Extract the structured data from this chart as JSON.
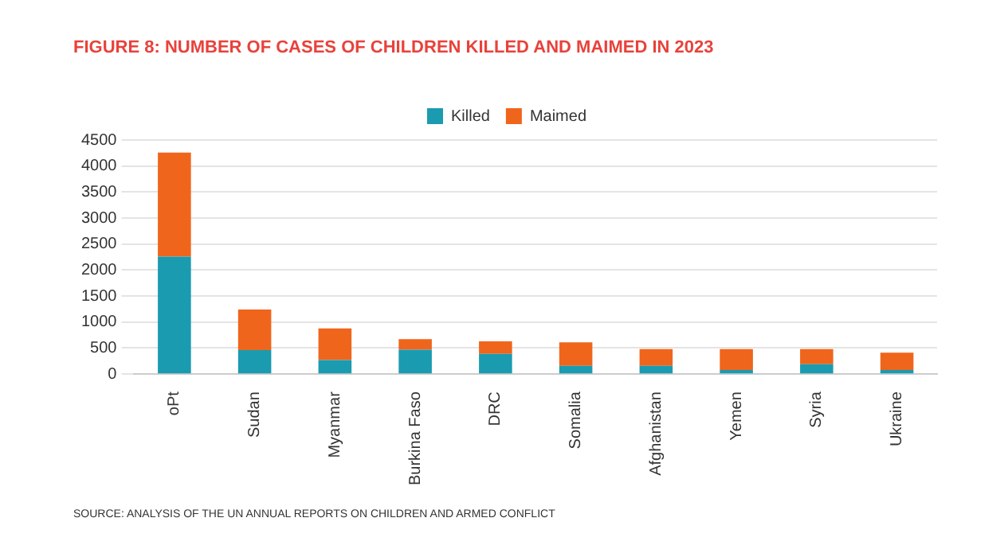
{
  "chart_data": {
    "type": "bar",
    "title": "FIGURE 8: NUMBER OF CASES OF CHILDREN KILLED AND MAIMED IN 2023",
    "annotations": [
      "SOURCE: ANALYSIS OF THE UN ANNUAL REPORTS ON CHILDREN AND ARMED CONFLICT"
    ],
    "categories": [
      "oPt",
      "Sudan",
      "Myanmar",
      "Burkina Faso",
      "DRC",
      "Somalia",
      "Afghanistan",
      "Yemen",
      "Syria",
      "Ukraine"
    ],
    "series": [
      {
        "name": "Killed",
        "color": "#1a9bb0",
        "values": [
          2260,
          460,
          270,
          470,
          390,
          160,
          160,
          80,
          190,
          80
        ]
      },
      {
        "name": "Maimed",
        "color": "#f0651c",
        "values": [
          2000,
          780,
          610,
          200,
          240,
          450,
          320,
          400,
          290,
          330
        ]
      }
    ],
    "stacked": true,
    "ylim": [
      0,
      4500
    ],
    "yticks": [
      0,
      500,
      1000,
      1500,
      2000,
      2500,
      3000,
      3500,
      4000,
      4500
    ],
    "grid": "y",
    "legend": "top"
  }
}
